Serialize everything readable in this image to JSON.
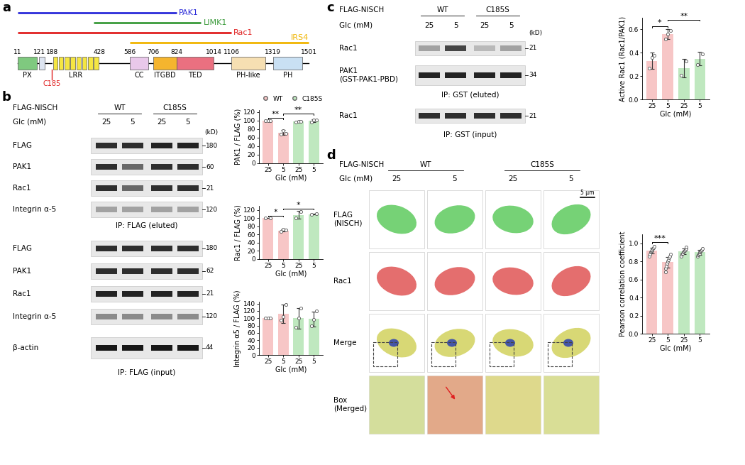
{
  "panels": {
    "a": {
      "label": "a",
      "positions": [
        11,
        121,
        188,
        428,
        586,
        706,
        824,
        1014,
        1106,
        1319,
        1501
      ],
      "binding": [
        {
          "name": "PAK1",
          "color": "#2b2bd9",
          "start": 11,
          "end": 824
        },
        {
          "name": "LIMK1",
          "color": "#3a9a3a",
          "start": 400,
          "end": 950
        },
        {
          "name": "Rac1",
          "color": "#e02020",
          "start": 11,
          "end": 1106
        },
        {
          "name": "IRS4",
          "color": "#f0b400",
          "start": 586,
          "end": 1501
        }
      ],
      "domains": [
        {
          "name": "PX",
          "start": 11,
          "end": 110,
          "color": "#7fc97f"
        },
        {
          "name": null,
          "start": 121,
          "end": 150,
          "color": "#dde4f0"
        },
        {
          "name": "LRR",
          "start": 188,
          "end": 428,
          "color": "#f5e642"
        },
        {
          "name": "CC",
          "start": 586,
          "end": 680,
          "color": "#e9c8ea"
        },
        {
          "name": "ITGBD",
          "start": 706,
          "end": 824,
          "color": "#f5b52e"
        },
        {
          "name": "TED",
          "start": 824,
          "end": 1014,
          "color": "#ea7080"
        },
        {
          "name": "PH-like",
          "start": 1106,
          "end": 1280,
          "color": "#f6dfb2"
        },
        {
          "name": "PH",
          "start": 1319,
          "end": 1470,
          "color": "#c9e0f3"
        }
      ],
      "site": {
        "label": "C185",
        "position": 185,
        "color": "#e02020"
      }
    },
    "b": {
      "label": "b",
      "kd_label": "(kD)",
      "header": {
        "title": "FLAG-NISCH",
        "groups": [
          "WT",
          "C185S"
        ],
        "glc_label": "Glc (mM)",
        "glc": [
          25,
          5,
          25,
          5
        ]
      },
      "eluted": {
        "caption": "IP: FLAG (eluted)",
        "rows": [
          {
            "name": "FLAG",
            "kd": 180,
            "bands": [
              0.8,
              0.8,
              0.85,
              0.85
            ]
          },
          {
            "name": "PAK1",
            "kd": 60,
            "bands": [
              0.8,
              0.55,
              0.8,
              0.8
            ]
          },
          {
            "name": "Rac1",
            "kd": 21,
            "bands": [
              0.8,
              0.55,
              0.8,
              0.8
            ]
          },
          {
            "name": "Integrin α-5",
            "kd": 120,
            "bands": [
              0.3,
              0.3,
              0.3,
              0.3
            ]
          }
        ]
      },
      "input": {
        "caption": "IP: FLAG (input)",
        "rows": [
          {
            "name": "FLAG",
            "kd": 180,
            "bands": [
              0.8,
              0.8,
              0.8,
              0.8
            ]
          },
          {
            "name": "PAK1",
            "kd": 62,
            "bands": [
              0.8,
              0.8,
              0.8,
              0.8
            ]
          },
          {
            "name": "Rac1",
            "kd": 21,
            "bands": [
              0.85,
              0.85,
              0.85,
              0.85
            ]
          },
          {
            "name": "Integrin α-5",
            "kd": 120,
            "bands": [
              0.4,
              0.4,
              0.4,
              0.4
            ]
          },
          {
            "name": "β-actin",
            "kd": 44,
            "bands": [
              0.9,
              0.9,
              0.9,
              0.9
            ]
          }
        ]
      }
    },
    "c": {
      "label": "c",
      "kd_label": "(kD)",
      "header": {
        "title": "FLAG-NISCH",
        "groups": [
          "WT",
          "C185S"
        ],
        "glc_label": "Glc (mM)",
        "glc": [
          25,
          5,
          25,
          5
        ]
      },
      "eluted": {
        "caption": "IP: GST (eluted)",
        "rows": [
          {
            "name": "Rac1",
            "kd": 21,
            "bands": [
              0.3,
              0.7,
              0.2,
              0.3
            ]
          },
          {
            "name": "PAK1\n(GST-PAK1-PBD)",
            "kd": 34,
            "bands": [
              0.85,
              0.85,
              0.85,
              0.85
            ]
          }
        ]
      },
      "input": {
        "caption": "IP: GST (input)",
        "rows": [
          {
            "name": "Rac1",
            "kd": 21,
            "bands": [
              0.8,
              0.8,
              0.8,
              0.8
            ]
          }
        ]
      }
    },
    "d": {
      "label": "d",
      "header": {
        "title": "FLAG-NISCH",
        "groups": [
          "WT",
          "C185S"
        ],
        "glc_label": "Glc (mM)",
        "glc": [
          25,
          5,
          25,
          5
        ]
      },
      "rows": [
        "FLAG\n(NISCH)",
        "Rac1",
        "Merge",
        "Box\n(Merged)"
      ],
      "scale_bar": "5 μm"
    }
  },
  "chart_data": [
    {
      "type": "bar",
      "ylabel": "PAK1 / FLAG (%)",
      "xlabel": "Glc (mM)",
      "categories": [
        "25",
        "5",
        "25",
        "5"
      ],
      "ylim": [
        0,
        125
      ],
      "yticks": [
        0,
        20,
        40,
        60,
        80,
        100,
        120
      ],
      "legend": "upper center",
      "series": [
        {
          "name": "WT",
          "color": "#f7c6c6",
          "values": [
            100,
            72,
            null,
            null
          ],
          "errors": [
            1,
            6,
            null,
            null
          ],
          "points": [
            [
              100,
              100,
              100
            ],
            [
              68,
              77,
              70
            ],
            null,
            null
          ]
        },
        {
          "name": "C185S",
          "color": "#bfe8bf",
          "values": [
            null,
            null,
            98,
            100
          ],
          "errors": [
            null,
            null,
            1,
            3
          ],
          "points": [
            null,
            null,
            [
              97,
              98,
              99
            ],
            [
              97,
              101,
              102
            ]
          ]
        }
      ],
      "significance": [
        {
          "text": "**",
          "pair": [
            0,
            1
          ]
        },
        {
          "text": "**",
          "pair": [
            1,
            3
          ]
        }
      ]
    },
    {
      "type": "bar",
      "ylabel": "Rac1 / FLAG (%)",
      "xlabel": "Glc (mM)",
      "categories": [
        "25",
        "5",
        "25",
        "5"
      ],
      "ylim": [
        0,
        130
      ],
      "yticks": [
        0,
        20,
        40,
        60,
        80,
        100,
        120
      ],
      "colors": [
        "#f7c6c6",
        "#f7c6c6",
        "#bfe8bf",
        "#bfe8bf"
      ],
      "values": [
        100,
        70,
        108,
        110
      ],
      "errors": [
        0,
        3,
        10,
        1
      ],
      "points": [
        [
          100,
          100
        ],
        [
          67,
          72,
          71
        ],
        [
          100,
          116
        ],
        [
          109,
          111
        ]
      ],
      "significance": [
        {
          "text": "*",
          "pair": [
            0,
            1
          ]
        },
        {
          "text": "*",
          "pair": [
            1,
            3
          ]
        }
      ]
    },
    {
      "type": "bar",
      "ylabel": "Integrin α5 / FLAG (%)",
      "xlabel": "Glc (mM)",
      "categories": [
        "25",
        "5",
        "25",
        "5"
      ],
      "ylim": [
        0,
        145
      ],
      "yticks": [
        0,
        20,
        40,
        60,
        80,
        100,
        120,
        140
      ],
      "colors": [
        "#f7c6c6",
        "#f7c6c6",
        "#bfe8bf",
        "#bfe8bf"
      ],
      "values": [
        100,
        112,
        100,
        98
      ],
      "errors": [
        0,
        25,
        28,
        20
      ],
      "points": [
        [
          100,
          100,
          100
        ],
        [
          95,
          105,
          138
        ],
        [
          75,
          100,
          128
        ],
        [
          80,
          97,
          120
        ]
      ]
    },
    {
      "type": "bar",
      "ylabel": "Active Rac1 (Rac1/PAK1)",
      "xlabel": "Glc (mM)",
      "categories": [
        "25",
        "5",
        "25",
        "5"
      ],
      "ylim": [
        0,
        0.7
      ],
      "yticks": [
        0.0,
        0.2,
        0.4,
        0.6
      ],
      "colors": [
        "#f7c6c6",
        "#f7c6c6",
        "#bfe8bf",
        "#bfe8bf"
      ],
      "values": [
        0.33,
        0.56,
        0.27,
        0.35
      ],
      "errors": [
        0.07,
        0.04,
        0.08,
        0.06
      ],
      "points": [
        [
          0.27,
          0.36,
          0.38
        ],
        [
          0.52,
          0.56,
          0.59
        ],
        [
          0.21,
          0.33
        ],
        [
          0.3,
          0.39
        ]
      ],
      "significance": [
        {
          "text": "*",
          "pair": [
            0,
            1
          ]
        },
        {
          "text": "**",
          "pair": [
            1,
            3
          ]
        }
      ]
    },
    {
      "type": "bar",
      "ylabel": "Pearson correlation coefficient",
      "xlabel": "Glc (mM)",
      "categories": [
        "25",
        "5",
        "25",
        "5"
      ],
      "ylim": [
        0,
        1.1
      ],
      "yticks": [
        0.0,
        0.2,
        0.4,
        0.6,
        0.8,
        1.0
      ],
      "colors": [
        "#f7c6c6",
        "#f7c6c6",
        "#bfe8bf",
        "#bfe8bf"
      ],
      "values": [
        0.92,
        0.79,
        0.91,
        0.9
      ],
      "errors": [
        0.03,
        0.06,
        0.03,
        0.03
      ],
      "points": [
        [
          0.86,
          0.88,
          0.9,
          0.91,
          0.92,
          0.93,
          0.94,
          0.95,
          0.97
        ],
        [
          0.68,
          0.72,
          0.75,
          0.78,
          0.8,
          0.82,
          0.84,
          0.86,
          0.88
        ],
        [
          0.86,
          0.88,
          0.89,
          0.9,
          0.91,
          0.92,
          0.93,
          0.94,
          0.96
        ],
        [
          0.86,
          0.87,
          0.88,
          0.89,
          0.9,
          0.91,
          0.92,
          0.93,
          0.94
        ]
      ],
      "significance": [
        {
          "text": "***",
          "pair": [
            0,
            1
          ]
        }
      ]
    }
  ]
}
